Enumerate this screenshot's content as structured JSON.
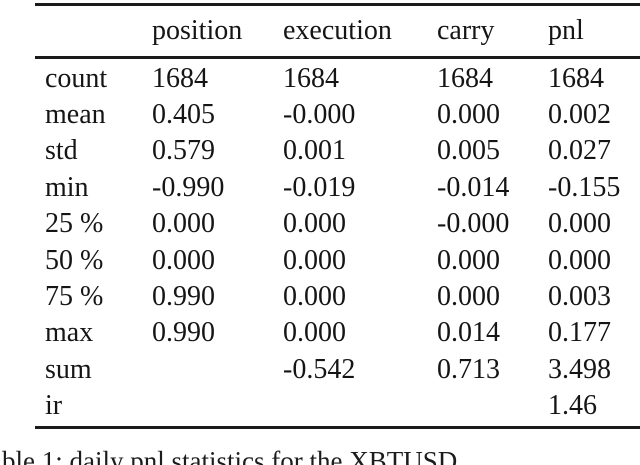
{
  "table": {
    "columns": [
      "position",
      "execution",
      "carry",
      "pnl"
    ],
    "row_labels": [
      "count",
      "mean",
      "std",
      "min",
      "25 %",
      "50 %",
      "75 %",
      "max",
      "sum",
      "ir"
    ],
    "rows": [
      {
        "label": "count",
        "values": [
          "1684",
          "1684",
          "1684",
          "1684"
        ]
      },
      {
        "label": "mean",
        "values": [
          "0.405",
          "-0.000",
          "0.000",
          "0.002"
        ]
      },
      {
        "label": "std",
        "values": [
          "0.579",
          "0.001",
          "0.005",
          "0.027"
        ]
      },
      {
        "label": "min",
        "values": [
          "-0.990",
          "-0.019",
          "-0.014",
          "-0.155"
        ]
      },
      {
        "label": "25 %",
        "values": [
          "0.000",
          "0.000",
          "-0.000",
          "0.000"
        ]
      },
      {
        "label": "50 %",
        "values": [
          "0.000",
          "0.000",
          "0.000",
          "0.000"
        ]
      },
      {
        "label": "75 %",
        "values": [
          "0.990",
          "0.000",
          "0.000",
          "0.003"
        ]
      },
      {
        "label": "max",
        "values": [
          "0.990",
          "0.000",
          "0.014",
          "0.177"
        ]
      },
      {
        "label": "sum",
        "values": [
          "",
          "-0.542",
          "0.713",
          "3.498"
        ]
      },
      {
        "label": "ir",
        "values": [
          "",
          "",
          "",
          "1.46"
        ]
      }
    ]
  },
  "caption": {
    "visible_fragment": "ble 1: daily pnl statistics for the XBTUSD"
  },
  "chart_data": {
    "type": "table",
    "title": "daily pnl statistics for the XBTUSD",
    "columns": [
      "position",
      "execution",
      "carry",
      "pnl"
    ],
    "index": [
      "count",
      "mean",
      "std",
      "min",
      "25 %",
      "50 %",
      "75 %",
      "max",
      "sum",
      "ir"
    ],
    "values": [
      [
        1684,
        1684,
        1684,
        1684
      ],
      [
        0.405,
        -0.0,
        0.0,
        0.002
      ],
      [
        0.579,
        0.001,
        0.005,
        0.027
      ],
      [
        -0.99,
        -0.019,
        -0.014,
        -0.155
      ],
      [
        0.0,
        0.0,
        -0.0,
        0.0
      ],
      [
        0.0,
        0.0,
        0.0,
        0.0
      ],
      [
        0.99,
        0.0,
        0.0,
        0.003
      ],
      [
        0.99,
        0.0,
        0.014,
        0.177
      ],
      [
        null,
        -0.542,
        0.713,
        3.498
      ],
      [
        null,
        null,
        null,
        1.46
      ]
    ]
  },
  "colors": {
    "background": "#ffffff",
    "text": "#151515",
    "rule": "#1a1a1a"
  }
}
